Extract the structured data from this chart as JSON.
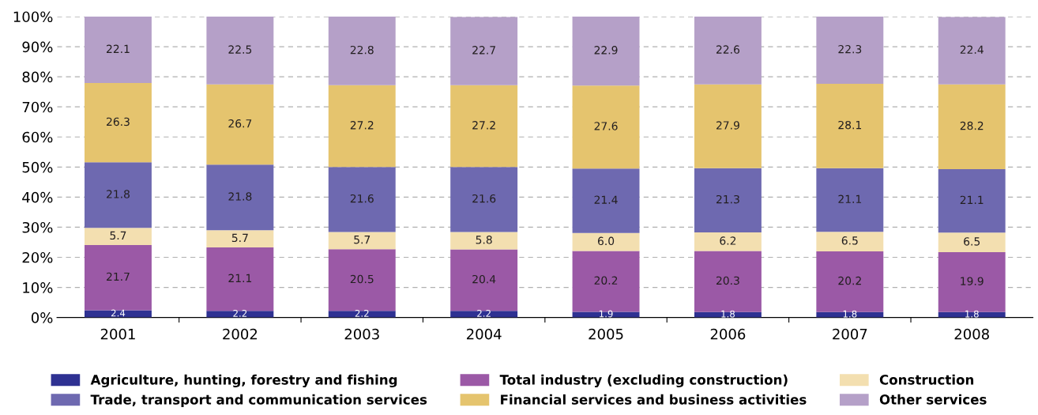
{
  "chart_data": {
    "type": "bar",
    "stacked": true,
    "categories": [
      "2001",
      "2002",
      "2003",
      "2004",
      "2005",
      "2006",
      "2007",
      "2008"
    ],
    "ylim": [
      0,
      100
    ],
    "yticks": [
      {
        "value": 0,
        "label": "0%"
      },
      {
        "value": 10,
        "label": "10%"
      },
      {
        "value": 20,
        "label": "20%"
      },
      {
        "value": 30,
        "label": "30%"
      },
      {
        "value": 40,
        "label": "40%"
      },
      {
        "value": 50,
        "label": "50%"
      },
      {
        "value": 60,
        "label": "60%"
      },
      {
        "value": 70,
        "label": "70%"
      },
      {
        "value": 80,
        "label": "80%"
      },
      {
        "value": 90,
        "label": "90%"
      },
      {
        "value": 100,
        "label": "100%"
      }
    ],
    "grid": "y",
    "legend": "bottom",
    "series": [
      {
        "name": "Agriculture, hunting, forestry and fishing",
        "color": "#2e3192",
        "values": [
          2.4,
          2.2,
          2.2,
          2.2,
          1.9,
          1.8,
          1.8,
          1.8
        ],
        "value_labels": [
          "2.4",
          "2.2",
          "2.2",
          "2.2",
          "1.9",
          "1.8",
          "1.8",
          "1.8"
        ]
      },
      {
        "name": "Total industry (excluding construction)",
        "color": "#9b59a6",
        "values": [
          21.7,
          21.1,
          20.5,
          20.4,
          20.2,
          20.3,
          20.2,
          19.9
        ],
        "value_labels": [
          "21.7",
          "21.1",
          "20.5",
          "20.4",
          "20.2",
          "20.3",
          "20.2",
          "19.9"
        ]
      },
      {
        "name": "Construction",
        "color": "#f3dfb0",
        "values": [
          5.7,
          5.7,
          5.7,
          5.8,
          6.0,
          6.2,
          6.5,
          6.5
        ],
        "value_labels": [
          "5.7",
          "5.7",
          "5.7",
          "5.8",
          "6.0",
          "6.2",
          "6.5",
          "6.5"
        ]
      },
      {
        "name": "Trade, transport and communication services",
        "color": "#6e69b0",
        "values": [
          21.8,
          21.8,
          21.6,
          21.6,
          21.4,
          21.3,
          21.1,
          21.1
        ],
        "value_labels": [
          "21.8",
          "21.8",
          "21.6",
          "21.6",
          "21.4",
          "21.3",
          "21.1",
          "21.1"
        ]
      },
      {
        "name": "Financial services and business activities",
        "color": "#e5c46e",
        "values": [
          26.3,
          26.7,
          27.2,
          27.2,
          27.6,
          27.9,
          28.1,
          28.2
        ],
        "value_labels": [
          "26.3",
          "26.7",
          "27.2",
          "27.2",
          "27.6",
          "27.9",
          "28.1",
          "28.2"
        ]
      },
      {
        "name": "Other services",
        "color": "#b5a0c8",
        "values": [
          22.1,
          22.5,
          22.8,
          22.7,
          22.9,
          22.6,
          22.3,
          22.4
        ],
        "value_labels": [
          "22.1",
          "22.5",
          "22.8",
          "22.7",
          "22.9",
          "22.6",
          "22.3",
          "22.4"
        ]
      }
    ]
  }
}
